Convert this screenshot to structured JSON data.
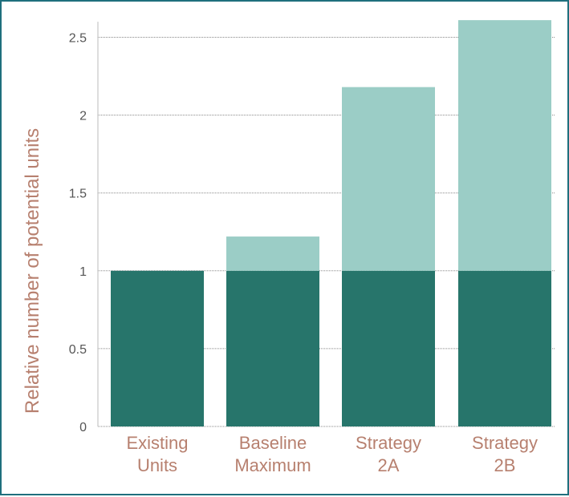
{
  "chart_data": {
    "type": "bar",
    "stacked": true,
    "title": "",
    "xlabel": "",
    "ylabel": "Relative number of potential units",
    "ylim": [
      0,
      2.6
    ],
    "yticks": [
      "0",
      "0.5",
      "1",
      "1.5",
      "2",
      "2.5"
    ],
    "ytick_values": [
      0,
      0.5,
      1,
      1.5,
      2,
      2.5
    ],
    "grid": true,
    "legend": "none",
    "categories": [
      [
        "Existing",
        "Units"
      ],
      [
        "Baseline",
        "Maximum"
      ],
      [
        "Strategy",
        "2A"
      ],
      [
        "Strategy",
        "2B"
      ]
    ],
    "series": [
      {
        "values": [
          1,
          1,
          1,
          1
        ],
        "color": "#27756b"
      },
      {
        "values": [
          0,
          0.22,
          1.18,
          1.61
        ],
        "color": "#9bcdc6"
      }
    ]
  }
}
